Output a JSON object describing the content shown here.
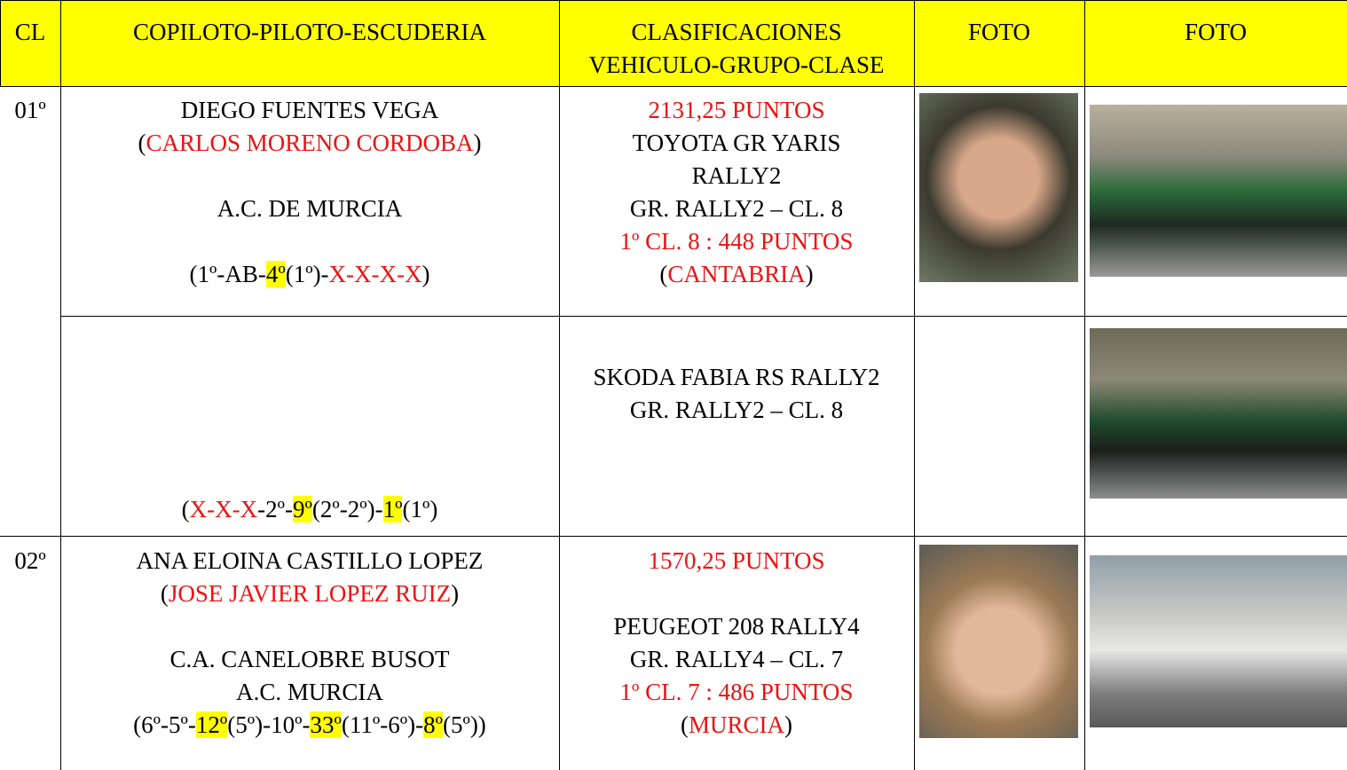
{
  "header": {
    "cl": "CL",
    "crew": "COPILOTO-PILOTO-ESCUDERIA",
    "classification": [
      "CLASIFICACIONES",
      "VEHICULO-GRUPO-CLASE"
    ],
    "photo_1": "FOTO",
    "photo_2": "FOTO"
  },
  "rows": [
    {
      "position": "01º",
      "crew": [
        [
          "DIEGO FUENTES VEGA"
        ],
        [
          "(",
          "CARLOS MORENO CORDOBA",
          ")"
        ],
        [
          "A.C. DE MURCIA"
        ],
        [
          "(1º-AB-",
          "4º",
          "(1º)-",
          "X-X-X-X",
          ")"
        ]
      ],
      "classification": [
        [
          "2131,25 PUNTOS"
        ],
        [
          "TOYOTA GR YARIS"
        ],
        [
          "RALLY2"
        ],
        [
          "GR. RALLY2 – CL. 8"
        ],
        [
          "1º CL. 8 : 448 PUNTOS"
        ],
        [
          "(",
          "CANTABRIA",
          ")"
        ]
      ]
    },
    {
      "crew": [
        [
          "(",
          "X-X-X",
          "-2º-",
          "9º",
          "(2º-2º)-",
          "1º",
          "(1º)"
        ]
      ],
      "classification": [
        [
          "SKODA FABIA RS RALLY2"
        ],
        [
          "GR. RALLY2 – CL. 8"
        ]
      ]
    },
    {
      "position": "02º",
      "crew": [
        [
          "ANA ELOINA CASTILLO LOPEZ"
        ],
        [
          "(",
          "JOSE JAVIER LOPEZ RUIZ",
          ")"
        ],
        [
          "C.A. CANELOBRE BUSOT"
        ],
        [
          "A.C. MURCIA"
        ],
        [
          "(6º-5º-",
          "12º",
          "(5º)-10º-",
          "33º",
          "(11º-6º)-",
          "8º",
          "(5º))"
        ]
      ],
      "classification": [
        [
          "1570,25 PUNTOS"
        ],
        [
          "PEUGEOT 208 RALLY4"
        ],
        [
          "GR. RALLY4 – CL. 7"
        ],
        [
          "1º CL. 7 : 486 PUNTOS"
        ],
        [
          "(",
          "MURCIA",
          ")"
        ]
      ]
    }
  ]
}
